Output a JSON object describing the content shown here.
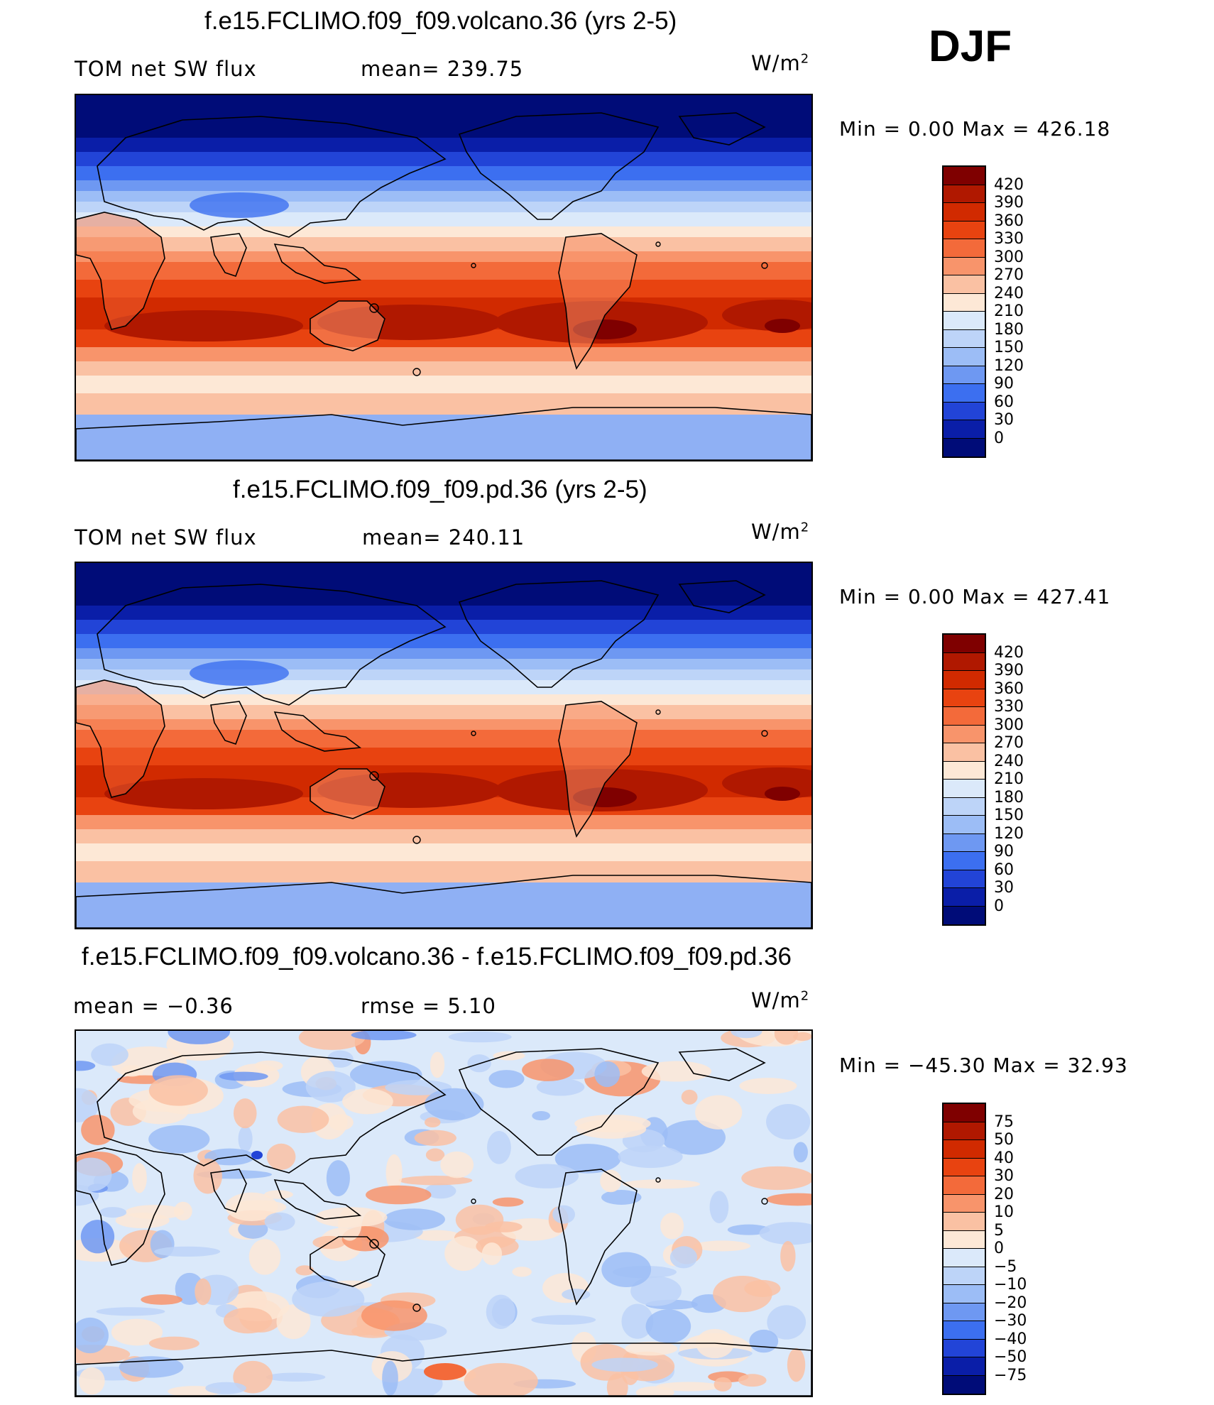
{
  "season": "DJF",
  "panels": [
    {
      "title": "f.e15.FCLIMO.f09_f09.volcano.36 (yrs 2-5)",
      "left_label": "TOM net SW flux",
      "mid_label": "mean=  239.75",
      "units": "W/m",
      "units_sup": "2",
      "minmax": "Min  =     0.00  Max  =  426.18",
      "colorbar": {
        "labels": [
          "420",
          "390",
          "360",
          "330",
          "300",
          "270",
          "240",
          "210",
          "180",
          "150",
          "120",
          "90",
          "60",
          "30",
          "0"
        ],
        "colors": [
          "#7f0000",
          "#b01800",
          "#d12a00",
          "#e84310",
          "#f36a3a",
          "#f8946b",
          "#fac1a3",
          "#fde8d6",
          "#dbe9fa",
          "#bdd4f8",
          "#9cbdf6",
          "#6e98f2",
          "#3c6ff0",
          "#2244d7",
          "#0a1ea8",
          "#000c78"
        ]
      },
      "map_kind": "climate"
    },
    {
      "title": "f.e15.FCLIMO.f09_f09.pd.36 (yrs 2-5)",
      "left_label": "TOM net SW flux",
      "mid_label": "mean=  240.11",
      "units": "W/m",
      "units_sup": "2",
      "minmax": "Min  =     0.00  Max  =  427.41",
      "colorbar": {
        "labels": [
          "420",
          "390",
          "360",
          "330",
          "300",
          "270",
          "240",
          "210",
          "180",
          "150",
          "120",
          "90",
          "60",
          "30",
          "0"
        ],
        "colors": [
          "#7f0000",
          "#b01800",
          "#d12a00",
          "#e84310",
          "#f36a3a",
          "#f8946b",
          "#fac1a3",
          "#fde8d6",
          "#dbe9fa",
          "#bdd4f8",
          "#9cbdf6",
          "#6e98f2",
          "#3c6ff0",
          "#2244d7",
          "#0a1ea8",
          "#000c78"
        ]
      },
      "map_kind": "climate"
    },
    {
      "title": "f.e15.FCLIMO.f09_f09.volcano.36 - f.e15.FCLIMO.f09_f09.pd.36",
      "left_label": "mean  =   −0.36",
      "mid_label": "rmse  =     5.10",
      "units": "W/m",
      "units_sup": "2",
      "minmax": "Min  = −45.30  Max  =   32.93",
      "colorbar": {
        "labels": [
          "75",
          "50",
          "40",
          "30",
          "20",
          "10",
          "5",
          "0",
          "−5",
          "−10",
          "−20",
          "−30",
          "−40",
          "−50",
          "−75"
        ],
        "colors": [
          "#7f0000",
          "#b01800",
          "#d12a00",
          "#e84310",
          "#f36a3a",
          "#f8946b",
          "#fac1a3",
          "#fde8d6",
          "#dbe9fa",
          "#bdd4f8",
          "#9cbdf6",
          "#6e98f2",
          "#3c6ff0",
          "#2244d7",
          "#0a1ea8",
          "#000c78"
        ]
      },
      "map_kind": "difference"
    }
  ]
}
